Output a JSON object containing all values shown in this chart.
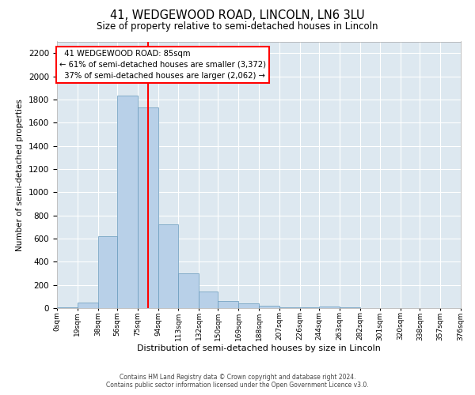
{
  "title": "41, WEDGEWOOD ROAD, LINCOLN, LN6 3LU",
  "subtitle": "Size of property relative to semi-detached houses in Lincoln",
  "xlabel": "Distribution of semi-detached houses by size in Lincoln",
  "ylabel": "Number of semi-detached properties",
  "property_label": "41 WEDGEWOOD ROAD: 85sqm",
  "pct_smaller": 61,
  "n_smaller": 3372,
  "pct_larger": 37,
  "n_larger": 2062,
  "bin_edges": [
    0,
    19,
    38,
    56,
    75,
    94,
    113,
    132,
    150,
    169,
    188,
    207,
    226,
    244,
    263,
    282,
    301,
    320,
    338,
    357,
    376
  ],
  "bin_labels": [
    "0sqm",
    "19sqm",
    "38sqm",
    "56sqm",
    "75sqm",
    "94sqm",
    "113sqm",
    "132sqm",
    "150sqm",
    "169sqm",
    "188sqm",
    "207sqm",
    "226sqm",
    "244sqm",
    "263sqm",
    "282sqm",
    "301sqm",
    "320sqm",
    "338sqm",
    "357sqm",
    "376sqm"
  ],
  "bar_heights": [
    10,
    50,
    620,
    1830,
    1730,
    720,
    300,
    140,
    60,
    40,
    20,
    10,
    5,
    15,
    5,
    0,
    0,
    0,
    0,
    0
  ],
  "bar_color": "#b8d0e8",
  "bar_edge_color": "#6699bb",
  "red_line_x": 85,
  "ylim": [
    0,
    2300
  ],
  "yticks": [
    0,
    200,
    400,
    600,
    800,
    1000,
    1200,
    1400,
    1600,
    1800,
    2000,
    2200
  ],
  "background_color": "#dde8f0",
  "grid_color": "#ffffff",
  "fig_facecolor": "#ffffff",
  "footer1": "Contains HM Land Registry data © Crown copyright and database right 2024.",
  "footer2": "Contains public sector information licensed under the Open Government Licence v3.0."
}
